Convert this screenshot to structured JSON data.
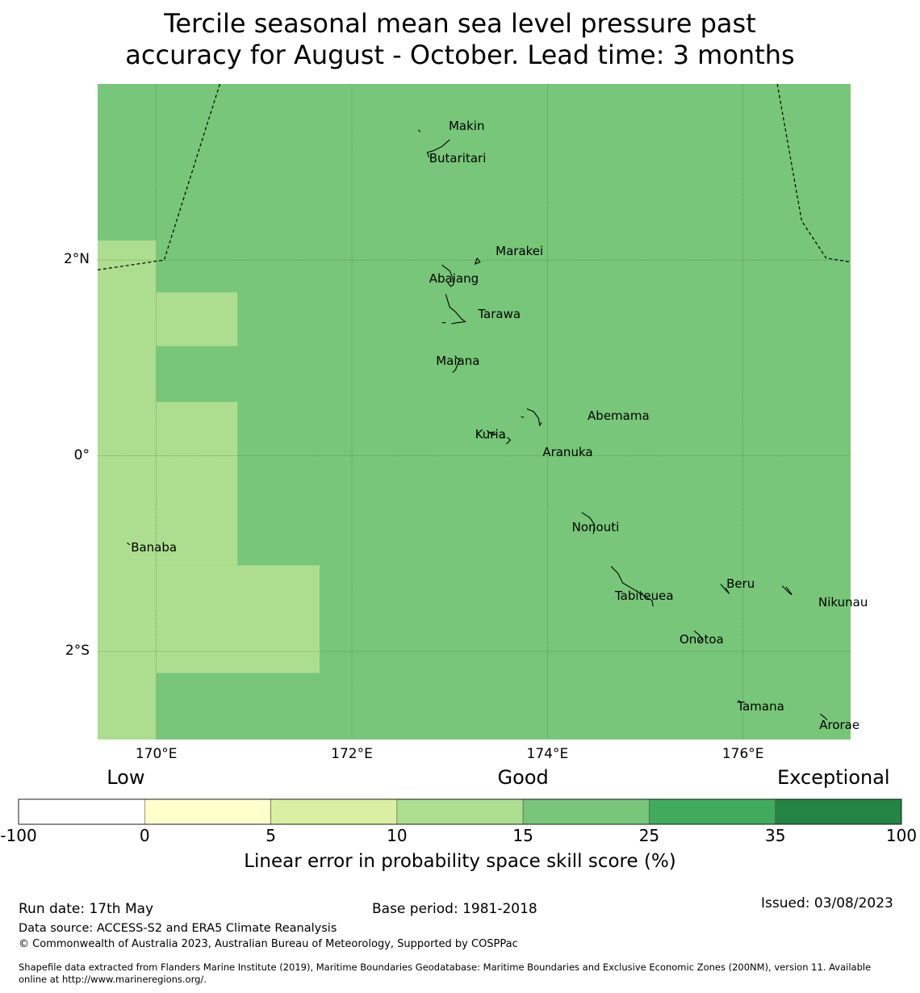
{
  "title": {
    "line1": "Tercile seasonal mean sea level pressure past",
    "line2": "accuracy for August - October. Lead time: 3 months"
  },
  "map": {
    "lon_range": [
      169.4,
      177.1
    ],
    "lat_range": [
      -2.9,
      3.8
    ],
    "lon_ticks": [
      {
        "value": 170,
        "label": "170°E"
      },
      {
        "value": 172,
        "label": "172°E"
      },
      {
        "value": 174,
        "label": "174°E"
      },
      {
        "value": 176,
        "label": "176°E"
      }
    ],
    "lat_ticks": [
      {
        "value": 2,
        "label": "2°N"
      },
      {
        "value": 0,
        "label": "0°"
      },
      {
        "value": -2,
        "label": "2°S"
      }
    ],
    "base_color": "#78c679",
    "low_skill_color": "#addd8e",
    "low_skill_cells": [
      {
        "lon": [
          169.4,
          170.0
        ],
        "lat": [
          -2.9,
          2.2
        ]
      },
      {
        "lon": [
          170.0,
          170.83
        ],
        "lat": [
          1.12,
          1.67
        ]
      },
      {
        "lon": [
          170.0,
          170.83
        ],
        "lat": [
          -1.12,
          0.55
        ]
      },
      {
        "lon": [
          170.0,
          171.67
        ],
        "lat": [
          -2.22,
          -1.12
        ]
      }
    ],
    "eez_boundaries": [
      [
        [
          169.4,
          1.9
        ],
        [
          170.08,
          2.0
        ],
        [
          170.65,
          3.8
        ]
      ],
      [
        [
          176.35,
          3.8
        ],
        [
          176.6,
          2.4
        ],
        [
          176.85,
          2.02
        ],
        [
          177.1,
          1.98
        ]
      ]
    ],
    "islands": [
      {
        "name": "Makin",
        "lon": 172.99,
        "lat": 3.37
      },
      {
        "name": "Butaritari",
        "lon": 172.79,
        "lat": 3.04
      },
      {
        "name": "Marakei",
        "lon": 173.47,
        "lat": 2.09
      },
      {
        "name": "Abaiang",
        "lon": 172.79,
        "lat": 1.81
      },
      {
        "name": "Tarawa",
        "lon": 173.29,
        "lat": 1.45
      },
      {
        "name": "Maiana",
        "lon": 172.86,
        "lat": 0.97
      },
      {
        "name": "Abemama",
        "lon": 174.41,
        "lat": 0.41
      },
      {
        "name": "Kuria",
        "lon": 173.26,
        "lat": 0.22
      },
      {
        "name": "Aranuka",
        "lon": 173.95,
        "lat": 0.04
      },
      {
        "name": "Nonouti",
        "lon": 174.25,
        "lat": -0.73
      },
      {
        "name": "Banaba",
        "lon": 169.74,
        "lat": -0.94
      },
      {
        "name": "Beru",
        "lon": 175.83,
        "lat": -1.31
      },
      {
        "name": "Tabiteuea",
        "lon": 174.69,
        "lat": -1.43
      },
      {
        "name": "Nikunau",
        "lon": 176.77,
        "lat": -1.5
      },
      {
        "name": "Onotoa",
        "lon": 175.35,
        "lat": -1.88
      },
      {
        "name": "Tamana",
        "lon": 175.94,
        "lat": -2.56
      },
      {
        "name": "Arorae",
        "lon": 176.78,
        "lat": -2.75
      }
    ],
    "coastlines": [
      [
        [
          173.0,
          3.23
        ],
        [
          172.92,
          3.16
        ],
        [
          172.84,
          3.12
        ],
        [
          172.77,
          3.1
        ],
        [
          172.79,
          3.05
        ]
      ],
      [
        [
          172.68,
          3.33
        ],
        [
          172.7,
          3.31
        ]
      ],
      [
        [
          173.28,
          2.02
        ],
        [
          173.31,
          1.98
        ],
        [
          173.26,
          1.96
        ],
        [
          173.28,
          2.02
        ]
      ],
      [
        [
          172.92,
          1.95
        ],
        [
          173.0,
          1.89
        ],
        [
          173.03,
          1.82
        ],
        [
          173.04,
          1.75
        ],
        [
          173.01,
          1.73
        ],
        [
          172.98,
          1.77
        ]
      ],
      [
        [
          172.96,
          1.65
        ],
        [
          173.0,
          1.52
        ],
        [
          173.06,
          1.47
        ],
        [
          173.12,
          1.4
        ],
        [
          173.16,
          1.37
        ],
        [
          173.08,
          1.36
        ],
        [
          173.02,
          1.35
        ]
      ],
      [
        [
          172.92,
          1.36
        ],
        [
          172.96,
          1.36
        ]
      ],
      [
        [
          173.06,
          1.01
        ],
        [
          173.1,
          0.98
        ],
        [
          173.06,
          0.88
        ],
        [
          173.03,
          0.85
        ]
      ],
      [
        [
          173.79,
          0.48
        ],
        [
          173.86,
          0.45
        ],
        [
          173.91,
          0.38
        ],
        [
          173.92,
          0.31
        ],
        [
          173.94,
          0.34
        ]
      ],
      [
        [
          173.73,
          0.4
        ],
        [
          173.76,
          0.39
        ]
      ],
      [
        [
          173.38,
          0.26
        ],
        [
          173.44,
          0.21
        ],
        [
          173.47,
          0.22
        ],
        [
          173.4,
          0.24
        ]
      ],
      [
        [
          173.52,
          0.18
        ],
        [
          173.57,
          0.19
        ]
      ],
      [
        [
          173.59,
          0.19
        ],
        [
          173.62,
          0.16
        ],
        [
          173.58,
          0.12
        ]
      ],
      [
        [
          174.35,
          -0.58
        ],
        [
          174.43,
          -0.63
        ],
        [
          174.48,
          -0.7
        ],
        [
          174.47,
          -0.8
        ]
      ],
      [
        [
          174.65,
          -1.13
        ],
        [
          174.72,
          -1.2
        ],
        [
          174.77,
          -1.3
        ],
        [
          174.89,
          -1.37
        ],
        [
          175.0,
          -1.44
        ],
        [
          175.07,
          -1.48
        ],
        [
          175.08,
          -1.54
        ]
      ],
      [
        [
          175.77,
          -1.31
        ],
        [
          175.82,
          -1.37
        ],
        [
          175.86,
          -1.41
        ],
        [
          175.82,
          -1.35
        ]
      ],
      [
        [
          176.4,
          -1.33
        ],
        [
          176.47,
          -1.4
        ],
        [
          176.5,
          -1.42
        ],
        [
          176.44,
          -1.34
        ]
      ],
      [
        [
          175.5,
          -1.79
        ],
        [
          175.55,
          -1.83
        ],
        [
          175.58,
          -1.87
        ],
        [
          175.54,
          -1.91
        ]
      ],
      [
        [
          175.95,
          -2.5
        ],
        [
          175.98,
          -2.52
        ]
      ],
      [
        [
          176.79,
          -2.64
        ],
        [
          176.83,
          -2.67
        ],
        [
          176.86,
          -2.7
        ]
      ],
      [
        [
          169.7,
          -0.89
        ],
        [
          169.73,
          -0.91
        ]
      ]
    ]
  },
  "legend": {
    "categories": [
      {
        "label": "Low",
        "value": -15
      },
      {
        "label": "Good",
        "value": 15
      },
      {
        "label": "Exceptional",
        "value": 65
      }
    ],
    "bins": [
      {
        "from": -100,
        "to": 0,
        "color": "#ffffff"
      },
      {
        "from": 0,
        "to": 5,
        "color": "#ffffcc"
      },
      {
        "from": 5,
        "to": 10,
        "color": "#d9f0a3"
      },
      {
        "from": 10,
        "to": 15,
        "color": "#addd8e"
      },
      {
        "from": 15,
        "to": 25,
        "color": "#78c679"
      },
      {
        "from": 25,
        "to": 35,
        "color": "#41ab5d"
      },
      {
        "from": 35,
        "to": 100,
        "color": "#238443"
      }
    ],
    "ticks": [
      "-100",
      "0",
      "5",
      "10",
      "15",
      "25",
      "35",
      "100"
    ],
    "label": "Linear error in probability space skill score (%)"
  },
  "footer": {
    "run_date": "Run date: 17th May",
    "base_period": "Base period: 1981-2018",
    "issued": "Issued: 03/08/2023",
    "data_source": "Data source: ACCESS-S2 and ERA5 Climate Reanalysis",
    "copyright": "© Commonwealth of Australia 2023, Australian Bureau of Meteorology, Supported by COSPPac",
    "shapefile_line1": "Shapefile data extracted from Flanders Marine Institute (2019), Maritime Boundaries Geodatabase: Maritime Boundaries and Exclusive Economic Zones (200NM), version 11. Available",
    "shapefile_line2": "online at http://www.marineregions.org/."
  }
}
